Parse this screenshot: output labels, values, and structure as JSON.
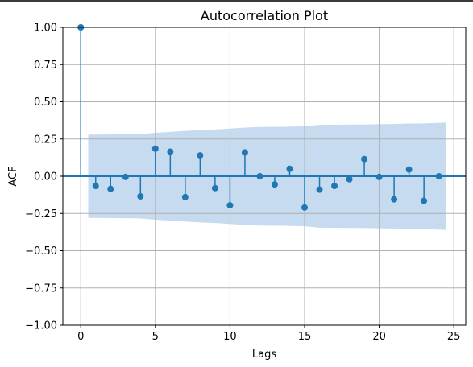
{
  "chart_data": {
    "type": "stem",
    "title": "Autocorrelation Plot",
    "xlabel": "Lags",
    "ylabel": "ACF",
    "xlim": [
      -1.2,
      25.8
    ],
    "ylim": [
      -1.0,
      1.0
    ],
    "xticks": [
      0,
      5,
      10,
      15,
      20,
      25
    ],
    "xtick_labels": [
      "0",
      "5",
      "10",
      "15",
      "20",
      "25"
    ],
    "yticks": [
      1.0,
      0.75,
      0.5,
      0.25,
      0.0,
      -0.25,
      -0.5,
      -0.75,
      -1.0
    ],
    "ytick_labels": [
      "1.00",
      "0.75",
      "0.50",
      "0.25",
      "0.00",
      "−0.25",
      "−0.50",
      "−0.75",
      "−1.00"
    ],
    "grid": true,
    "series_color": "#1f77b4",
    "band_color": "#c6dbef",
    "lags": [
      0,
      1,
      2,
      3,
      4,
      5,
      6,
      7,
      8,
      9,
      10,
      11,
      12,
      13,
      14,
      15,
      16,
      17,
      18,
      19,
      20,
      21,
      22,
      23,
      24
    ],
    "acf": [
      1.0,
      -0.065,
      -0.085,
      -0.005,
      -0.135,
      0.185,
      0.165,
      -0.14,
      0.14,
      -0.08,
      -0.195,
      0.16,
      0.0,
      -0.055,
      0.05,
      -0.21,
      -0.09,
      -0.065,
      -0.02,
      0.115,
      -0.005,
      -0.155,
      0.045,
      -0.165,
      0.0
    ],
    "confidence_band": {
      "lags": [
        0.5,
        1,
        2,
        3,
        4,
        5,
        6,
        7,
        8,
        9,
        10,
        11,
        12,
        13,
        14,
        15,
        16,
        17,
        18,
        19,
        20,
        21,
        22,
        23,
        24,
        24.5
      ],
      "upper": [
        0.28,
        0.28,
        0.281,
        0.282,
        0.283,
        0.292,
        0.298,
        0.305,
        0.31,
        0.314,
        0.32,
        0.327,
        0.331,
        0.332,
        0.333,
        0.336,
        0.345,
        0.346,
        0.347,
        0.347,
        0.35,
        0.351,
        0.354,
        0.355,
        0.358,
        0.36
      ]
    }
  }
}
